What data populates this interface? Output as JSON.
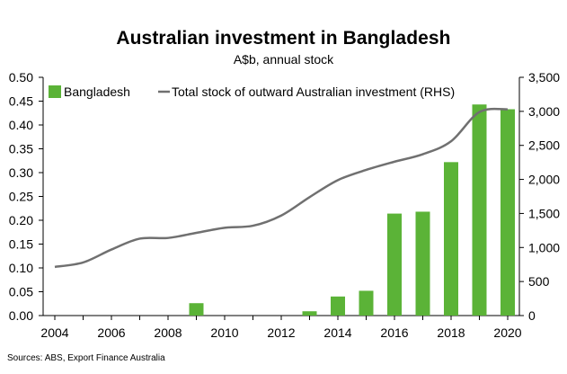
{
  "chart_data": {
    "type": "bar",
    "title": "Australian investment in Bangladesh",
    "subtitle": "A$b, annual stock",
    "source": "Sources: ABS, Export Finance Australia",
    "colors": {
      "bar": "#5bb337",
      "line": "#707070",
      "axis": "#000000"
    },
    "legend_position": "top",
    "grid": false,
    "x_ticks": [
      "2004",
      "2006",
      "2008",
      "2010",
      "2012",
      "2014",
      "2016",
      "2018",
      "2020"
    ],
    "xlim": [
      2004,
      2020
    ],
    "left_axis": {
      "ylim": [
        0,
        0.5
      ],
      "ticks": [
        "0.00",
        "0.05",
        "0.10",
        "0.15",
        "0.20",
        "0.25",
        "0.30",
        "0.35",
        "0.40",
        "0.45",
        "0.50"
      ]
    },
    "right_axis": {
      "ylim": [
        0,
        3500
      ],
      "ticks": [
        "0",
        "500",
        "1,000",
        "1,500",
        "2,000",
        "2,500",
        "3,000",
        "3,500"
      ]
    },
    "series": [
      {
        "name": "Bangladesh",
        "type": "bar",
        "axis": "left",
        "x": [
          2004,
          2005,
          2006,
          2007,
          2008,
          2009,
          2010,
          2011,
          2012,
          2013,
          2014,
          2015,
          2016,
          2017,
          2018,
          2019,
          2020
        ],
        "values": [
          0,
          0,
          0,
          0,
          0,
          0.026,
          0,
          0,
          0,
          0.009,
          0.04,
          0.052,
          0.214,
          0.218,
          0.322,
          0.443,
          0.433
        ]
      },
      {
        "name": "Total stock of outward Australian investment (RHS)",
        "type": "line",
        "axis": "right",
        "x": [
          2004,
          2005,
          2006,
          2007,
          2008,
          2009,
          2010,
          2011,
          2012,
          2013,
          2014,
          2015,
          2016,
          2017,
          2018,
          2019,
          2020
        ],
        "values": [
          715,
          780,
          970,
          1130,
          1140,
          1215,
          1290,
          1320,
          1470,
          1740,
          1990,
          2140,
          2260,
          2370,
          2560,
          2990,
          3030
        ]
      }
    ]
  }
}
